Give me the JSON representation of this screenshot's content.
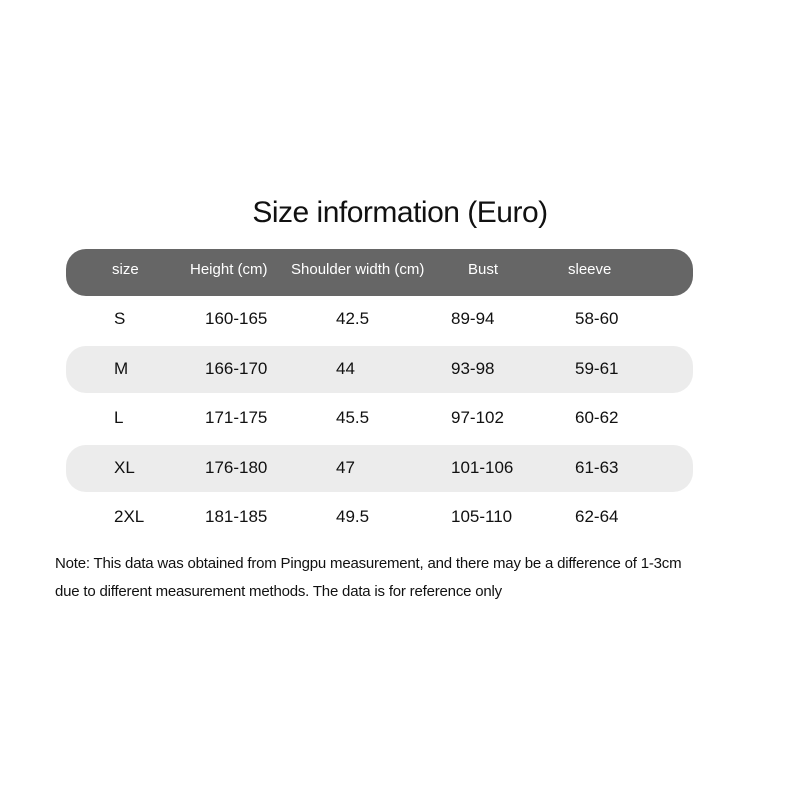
{
  "title": "Size information (Euro)",
  "table": {
    "headers": [
      "size",
      "Height (cm)",
      "Shoulder width (cm)",
      "Bust",
      "sleeve"
    ],
    "rows": [
      [
        "S",
        "160-165",
        "42.5",
        "89-94",
        "58-60"
      ],
      [
        "M",
        "166-170",
        "44",
        "93-98",
        "59-61"
      ],
      [
        "L",
        "171-175",
        "45.5",
        "97-102",
        "60-62"
      ],
      [
        "XL",
        "176-180",
        "47",
        "101-106",
        "61-63"
      ],
      [
        "2XL",
        "181-185",
        "49.5",
        "105-110",
        "62-64"
      ]
    ]
  },
  "note": {
    "line1": "Note: This data was obtained from Pingpu measurement, and there may be a difference of 1-3cm",
    "line2": "due to different measurement methods. The data is for reference only"
  },
  "colors": {
    "header_bg": "#666666",
    "stripe_bg": "#ececec"
  }
}
